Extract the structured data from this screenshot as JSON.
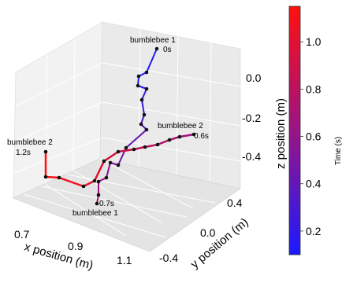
{
  "chart_data": {
    "type": "line",
    "projection": "3d",
    "grid": true,
    "legend": "none",
    "axes": {
      "x": {
        "label": "x position (m)",
        "ticks": [
          "0.7",
          "0.9",
          "1.1"
        ],
        "range": [
          0.6,
          1.2
        ]
      },
      "y": {
        "label": "y position (m)",
        "ticks": [
          "-0.4",
          "0.0",
          "0.4"
        ],
        "range": [
          -0.45,
          0.45
        ]
      },
      "z": {
        "label": "z position (m)",
        "ticks": [
          "0.0",
          "-0.2",
          "-0.4"
        ],
        "range": [
          -0.5,
          0.1
        ]
      }
    },
    "colorbar": {
      "label": "Time (s)",
      "ticks": [
        "0.2",
        "0.4",
        "0.6",
        "0.8",
        "1.0"
      ],
      "range": [
        0.1,
        1.15
      ],
      "colors": {
        "low": "#1a1aff",
        "mid": "#a0107a",
        "high": "#ff1010"
      }
    },
    "series": [
      {
        "name": "bumblebee 1",
        "time_range": [
          0.0,
          0.7
        ],
        "start_label": [
          "bumblebee 1",
          "0s"
        ],
        "end_label": [
          "0.7s",
          "bumblebee 1"
        ],
        "points": [
          {
            "x": 0.98,
            "y": 0.4,
            "z": 0.1
          },
          {
            "x": 0.95,
            "y": 0.38,
            "z": 0.02
          },
          {
            "x": 0.94,
            "y": 0.36,
            "z": -0.02
          },
          {
            "x": 0.95,
            "y": 0.36,
            "z": -0.06
          },
          {
            "x": 0.93,
            "y": 0.3,
            "z": -0.07
          },
          {
            "x": 0.94,
            "y": 0.28,
            "z": -0.05
          },
          {
            "x": 0.95,
            "y": 0.25,
            "z": -0.15
          },
          {
            "x": 0.95,
            "y": 0.2,
            "z": -0.26
          },
          {
            "x": 0.96,
            "y": 0.18,
            "z": -0.29
          },
          {
            "x": 0.97,
            "y": 0.15,
            "z": -0.31
          },
          {
            "x": 0.92,
            "y": 0.1,
            "z": -0.32
          },
          {
            "x": 0.85,
            "y": 0.0,
            "z": -0.31
          },
          {
            "x": 0.84,
            "y": -0.05,
            "z": -0.34
          },
          {
            "x": 0.83,
            "y": -0.1,
            "z": -0.36
          },
          {
            "x": 0.82,
            "y": -0.15,
            "z": -0.4
          },
          {
            "x": 0.81,
            "y": -0.18,
            "z": -0.42
          }
        ]
      },
      {
        "name": "bumblebee 2",
        "time_range": [
          0.6,
          1.2
        ],
        "start_label": [
          "bumblebee 2",
          "0.6s"
        ],
        "end_label": [
          "bumblebee 2",
          "1.2s"
        ],
        "points": [
          {
            "x": 1.1,
            "y": 0.15,
            "z": -0.28
          },
          {
            "x": 1.0,
            "y": 0.12,
            "z": -0.26
          },
          {
            "x": 0.95,
            "y": 0.1,
            "z": -0.25
          },
          {
            "x": 0.92,
            "y": 0.08,
            "z": -0.24
          },
          {
            "x": 0.88,
            "y": 0.05,
            "z": -0.24
          },
          {
            "x": 0.83,
            "y": 0.0,
            "z": -0.26
          },
          {
            "x": 0.8,
            "y": -0.05,
            "z": -0.28
          },
          {
            "x": 0.78,
            "y": -0.12,
            "z": -0.32
          },
          {
            "x": 0.74,
            "y": -0.15,
            "z": -0.35
          },
          {
            "x": 0.68,
            "y": -0.15,
            "z": -0.37
          },
          {
            "x": 0.63,
            "y": -0.1,
            "z": -0.38
          },
          {
            "x": 0.6,
            "y": -0.05,
            "z": -0.37
          },
          {
            "x": 0.6,
            "y": 0.05,
            "z": -0.25
          }
        ]
      }
    ]
  }
}
